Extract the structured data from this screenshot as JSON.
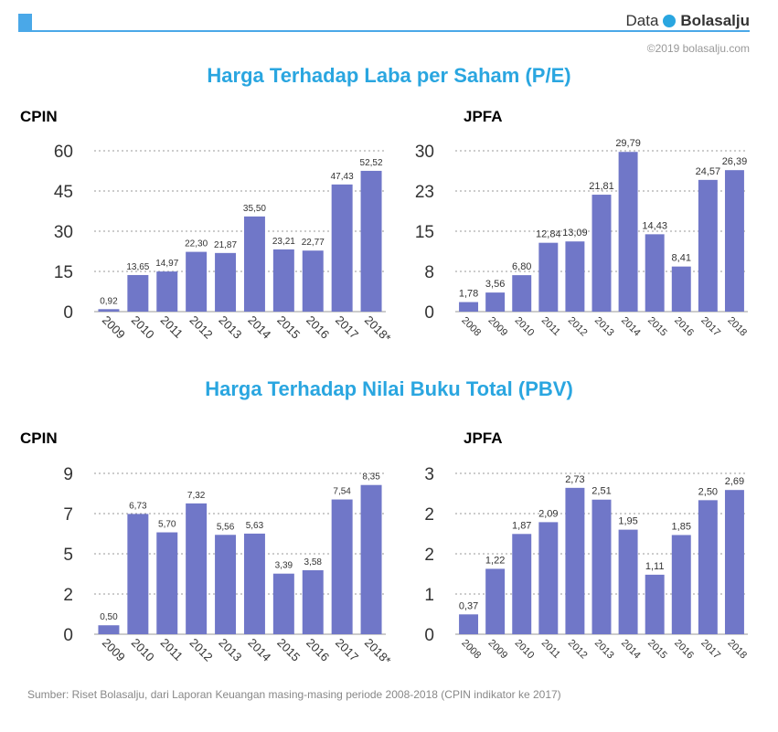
{
  "header": {
    "brand_prefix": "Data",
    "brand_name": "Bolasalju",
    "copyright": "©2019 bolasalju.com",
    "accent_color": "#4aa8e8"
  },
  "sections": [
    {
      "title": "Harga Terhadap Laba per Saham (P/E)"
    },
    {
      "title": "Harga Terhadap Nilai Buku Total (PBV)"
    }
  ],
  "footer": {
    "source": "Sumber: Riset Bolasalju, dari Laporan Keuangan masing-masing periode 2008-2018 (CPIN indikator ke 2017)"
  },
  "chart_data": [
    {
      "type": "bar",
      "title": "CPIN",
      "section": "Harga Terhadap Laba per Saham (P/E)",
      "categories": [
        "2009",
        "2010",
        "2011",
        "2012",
        "2013",
        "2014",
        "2015",
        "2016",
        "2017",
        "2018*"
      ],
      "values": [
        0.92,
        13.65,
        14.97,
        22.3,
        21.87,
        35.5,
        23.21,
        22.77,
        47.43,
        52.52
      ],
      "labels": [
        "0,92",
        "13,65",
        "14,97",
        "22,30",
        "21,87",
        "35,50",
        "23,21",
        "22,77",
        "47,43",
        "52,52"
      ],
      "yticks": [
        "0",
        "15",
        "30",
        "45",
        "60"
      ],
      "ylim": [
        0,
        60
      ],
      "grid": true,
      "bar_color": "#7077c8",
      "label_size": 10
    },
    {
      "type": "bar",
      "title": "JPFA",
      "section": "Harga Terhadap Laba per Saham (P/E)",
      "categories": [
        "2008",
        "2009",
        "2010",
        "2011",
        "2012",
        "2013",
        "2014",
        "2015",
        "2016",
        "2017",
        "2018"
      ],
      "values": [
        1.78,
        3.56,
        6.8,
        12.84,
        13.09,
        21.81,
        29.79,
        14.43,
        8.41,
        24.57,
        26.39
      ],
      "labels": [
        "1,78",
        "3,56",
        "6,80",
        "12,84",
        "13,09",
        "21,81",
        "29,79",
        "14,43",
        "8,41",
        "24,57",
        "26,39"
      ],
      "yticks": [
        "0",
        "8",
        "15",
        "23",
        "30"
      ],
      "ylim": [
        0,
        30
      ],
      "grid": true,
      "bar_color": "#7077c8",
      "label_size": 11
    },
    {
      "type": "bar",
      "title": "CPIN",
      "section": "Harga Terhadap Nilai Buku Total (PBV)",
      "categories": [
        "2009",
        "2010",
        "2011",
        "2012",
        "2013",
        "2014",
        "2015",
        "2016",
        "2017",
        "2018*"
      ],
      "values": [
        0.5,
        6.73,
        5.7,
        7.32,
        5.56,
        5.63,
        3.39,
        3.58,
        7.54,
        8.35
      ],
      "labels": [
        "0,50",
        "6,73",
        "5,70",
        "7,32",
        "5,56",
        "5,63",
        "3,39",
        "3,58",
        "7,54",
        "8,35"
      ],
      "yticks": [
        "0",
        "2",
        "5",
        "7",
        "9"
      ],
      "ylim": [
        0,
        9
      ],
      "grid": true,
      "bar_color": "#7077c8",
      "label_size": 10
    },
    {
      "type": "bar",
      "title": "JPFA",
      "section": "Harga Terhadap Nilai Buku Total (PBV)",
      "categories": [
        "2008",
        "2009",
        "2010",
        "2011",
        "2012",
        "2013",
        "2014",
        "2015",
        "2016",
        "2017",
        "2018"
      ],
      "values": [
        0.37,
        1.22,
        1.87,
        2.09,
        2.73,
        2.51,
        1.95,
        1.11,
        1.85,
        2.5,
        2.69
      ],
      "labels": [
        "0,37",
        "1,22",
        "1,87",
        "2,09",
        "2,73",
        "2,51",
        "1,95",
        "1,11",
        "1,85",
        "2,50",
        "2,69"
      ],
      "yticks": [
        "0",
        "1",
        "2",
        "2",
        "3"
      ],
      "ylim": [
        0,
        3
      ],
      "grid": true,
      "bar_color": "#7077c8",
      "label_size": 11
    }
  ]
}
